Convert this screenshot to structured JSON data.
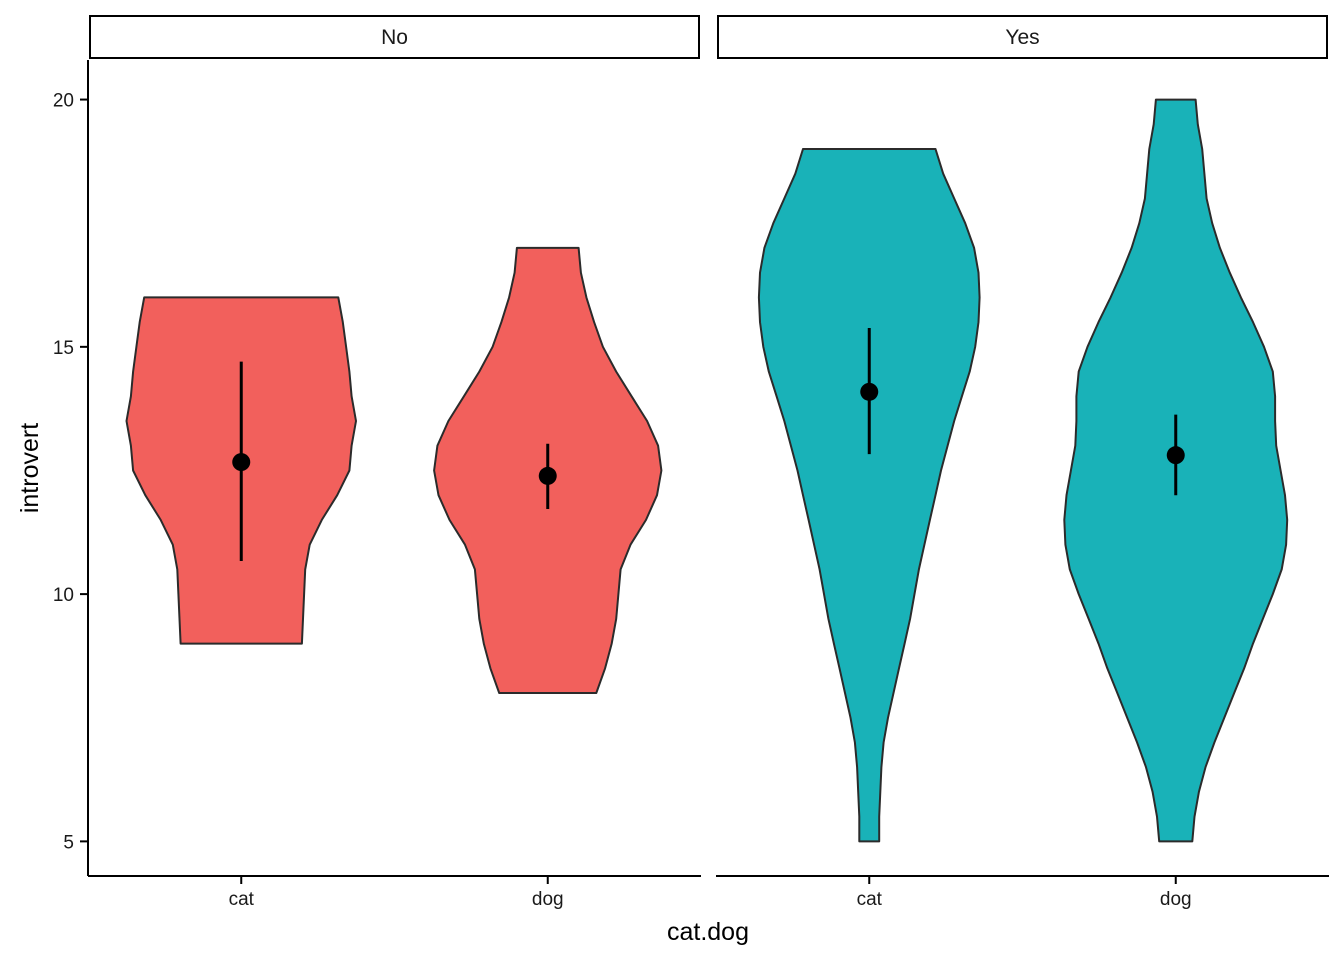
{
  "chart_data": {
    "type": "violin",
    "facet_variable_levels": [
      "No",
      "Yes"
    ],
    "categories": [
      "cat",
      "dog"
    ],
    "xlabel": "cat.dog",
    "ylabel": "introvert",
    "yticks": [
      5,
      10,
      15,
      20
    ],
    "ylim": [
      4.3,
      20.8
    ],
    "grid": false,
    "legend": "none",
    "colors": {
      "No": "#F2605C",
      "Yes": "#19B2B8",
      "outline": "#2b2b2b",
      "point": "#000000"
    },
    "panels": [
      {
        "label": "No",
        "violins": [
          {
            "category": "cat",
            "min": 9,
            "max": 16,
            "mean": 12.67,
            "ci_low": 10.67,
            "ci_high": 14.7,
            "profile": [
              [
                9,
                0.55
              ],
              [
                9.5,
                0.56
              ],
              [
                10,
                0.57
              ],
              [
                10.5,
                0.58
              ],
              [
                11,
                0.62
              ],
              [
                11.5,
                0.73
              ],
              [
                12,
                0.87
              ],
              [
                12.5,
                0.98
              ],
              [
                13,
                1.0
              ],
              [
                13.5,
                1.04
              ],
              [
                14,
                1.0
              ],
              [
                14.5,
                0.98
              ],
              [
                15,
                0.95
              ],
              [
                15.5,
                0.92
              ],
              [
                16,
                0.88
              ]
            ]
          },
          {
            "category": "dog",
            "min": 8,
            "max": 17,
            "mean": 12.39,
            "ci_low": 11.72,
            "ci_high": 13.04,
            "profile": [
              [
                8,
                0.44
              ],
              [
                8.5,
                0.52
              ],
              [
                9,
                0.58
              ],
              [
                9.5,
                0.62
              ],
              [
                10,
                0.64
              ],
              [
                10.5,
                0.66
              ],
              [
                11,
                0.75
              ],
              [
                11.5,
                0.89
              ],
              [
                12,
                0.99
              ],
              [
                12.5,
                1.03
              ],
              [
                13,
                1.0
              ],
              [
                13.5,
                0.9
              ],
              [
                14,
                0.76
              ],
              [
                14.5,
                0.62
              ],
              [
                15,
                0.5
              ],
              [
                15.5,
                0.42
              ],
              [
                16,
                0.35
              ],
              [
                16.5,
                0.3
              ],
              [
                17,
                0.28
              ]
            ]
          }
        ]
      },
      {
        "label": "Yes",
        "violins": [
          {
            "category": "cat",
            "min": 5,
            "max": 19,
            "mean": 14.09,
            "ci_low": 12.83,
            "ci_high": 15.38,
            "profile": [
              [
                5,
                0.09
              ],
              [
                5.5,
                0.09
              ],
              [
                6,
                0.1
              ],
              [
                6.5,
                0.11
              ],
              [
                7,
                0.13
              ],
              [
                7.5,
                0.17
              ],
              [
                8,
                0.22
              ],
              [
                8.5,
                0.27
              ],
              [
                9,
                0.32
              ],
              [
                9.5,
                0.37
              ],
              [
                10,
                0.41
              ],
              [
                10.5,
                0.45
              ],
              [
                11,
                0.5
              ],
              [
                11.5,
                0.55
              ],
              [
                12,
                0.6
              ],
              [
                12.5,
                0.65
              ],
              [
                13,
                0.71
              ],
              [
                13.5,
                0.77
              ],
              [
                14,
                0.84
              ],
              [
                14.5,
                0.91
              ],
              [
                15,
                0.96
              ],
              [
                15.5,
                0.99
              ],
              [
                16,
                1.0
              ],
              [
                16.5,
                0.99
              ],
              [
                17,
                0.95
              ],
              [
                17.5,
                0.87
              ],
              [
                18,
                0.77
              ],
              [
                18.5,
                0.67
              ],
              [
                19,
                0.6
              ]
            ]
          },
          {
            "category": "dog",
            "min": 5,
            "max": 20,
            "mean": 12.81,
            "ci_low": 12.0,
            "ci_high": 13.63,
            "profile": [
              [
                5,
                0.15
              ],
              [
                5.5,
                0.17
              ],
              [
                6,
                0.21
              ],
              [
                6.5,
                0.27
              ],
              [
                7,
                0.35
              ],
              [
                7.5,
                0.44
              ],
              [
                8,
                0.53
              ],
              [
                8.5,
                0.62
              ],
              [
                9,
                0.7
              ],
              [
                9.5,
                0.79
              ],
              [
                10,
                0.88
              ],
              [
                10.5,
                0.96
              ],
              [
                11,
                1.0
              ],
              [
                11.5,
                1.01
              ],
              [
                12,
                0.99
              ],
              [
                12.5,
                0.95
              ],
              [
                13,
                0.91
              ],
              [
                13.5,
                0.9
              ],
              [
                14,
                0.9
              ],
              [
                14.5,
                0.88
              ],
              [
                15,
                0.8
              ],
              [
                15.5,
                0.7
              ],
              [
                16,
                0.59
              ],
              [
                16.5,
                0.49
              ],
              [
                17,
                0.4
              ],
              [
                17.5,
                0.33
              ],
              [
                18,
                0.28
              ],
              [
                18.5,
                0.26
              ],
              [
                19,
                0.24
              ],
              [
                19.5,
                0.2
              ],
              [
                20,
                0.18
              ]
            ]
          }
        ]
      }
    ]
  }
}
